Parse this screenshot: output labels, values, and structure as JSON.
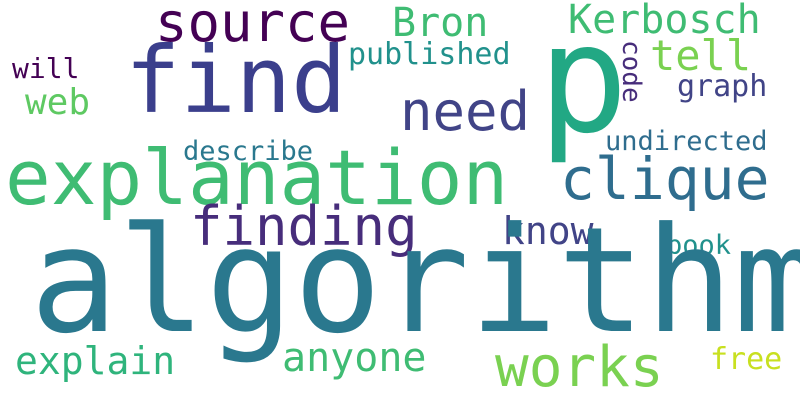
{
  "word_cloud": {
    "words": {
      "algorithm": "algorithm",
      "explanation": "explanation",
      "find": "find",
      "p": "p",
      "clique": "clique",
      "source": "source",
      "finding": "finding",
      "need": "need",
      "works": "works",
      "bron": "Bron",
      "kerbosch": "Kerbosch",
      "tell": "tell",
      "published": "published",
      "code": "code",
      "graph": "graph",
      "will": "will",
      "web": "web",
      "describe": "describe",
      "undirected": "undirected",
      "know": "know",
      "book": "book",
      "explain": "explain",
      "anyone": "anyone",
      "free": "free"
    },
    "palette": {
      "purple": "#440154",
      "indigo": "#472d7b",
      "navy": "#3b3f8c",
      "slate": "#414487",
      "blue": "#2f6d8e",
      "teal": "#2a788e",
      "cyan": "#21918c",
      "green": "#22a884",
      "green2": "#2fb47c",
      "light_green": "#3fbc73",
      "lime": "#5ec962",
      "lime2": "#7ad151",
      "yellow": "#c8e020"
    }
  }
}
